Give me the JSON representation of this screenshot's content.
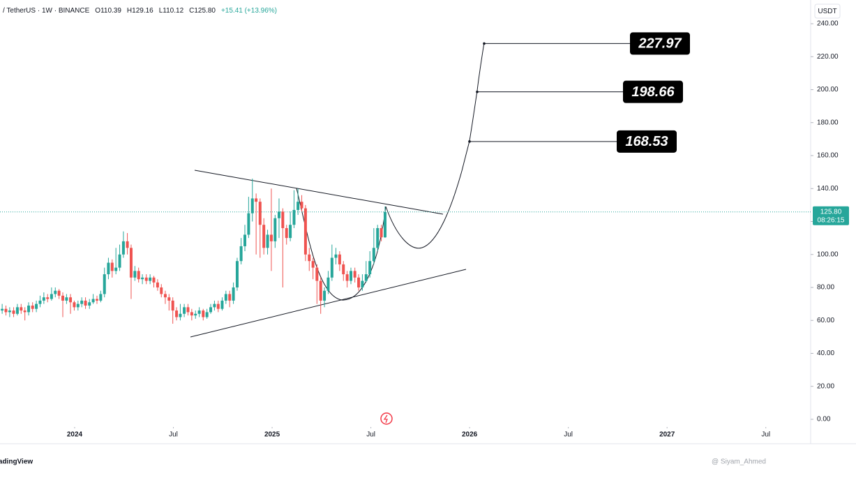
{
  "chart_data": {
    "type": "candlestick",
    "symbol": "/ TetherUS · 1W · BINANCE",
    "ohlc_header": [
      "O110.39",
      "H129.16",
      "L110.12",
      "C125.80",
      "+15.41 (+13.96%)"
    ],
    "currency": "USDT",
    "last_price": {
      "value": 125.8,
      "label": "125.80"
    },
    "countdown": "08:26:15",
    "up_color": "#26a69a",
    "down_color": "#ef5350",
    "targets": [
      227.97,
      198.66,
      168.53
    ],
    "xlim": [
      2023.622,
      2027.72
    ],
    "ylim": [
      0,
      240
    ],
    "xticks": [
      2024,
      {
        "value": 2024.5,
        "label": "Jul"
      },
      2025,
      {
        "value": 2025.5,
        "label": "Jul"
      },
      2026,
      {
        "value": 2026.5,
        "label": "Jul"
      },
      2027,
      {
        "value": 2027.5,
        "label": "Jul"
      }
    ],
    "yticks": [
      {
        "value": 0,
        "label": "0.00"
      },
      {
        "value": 20,
        "label": "20.00"
      },
      {
        "value": 40,
        "label": "40.00"
      },
      {
        "value": 60,
        "label": "60.00"
      },
      {
        "value": 80,
        "label": "80.00"
      },
      {
        "value": 100,
        "label": "100.00"
      },
      {
        "value": 120,
        "label": "120.00"
      },
      {
        "value": 140,
        "label": "140.00"
      },
      {
        "value": 160,
        "label": "160.00"
      },
      {
        "value": 180,
        "label": "180.00"
      },
      {
        "value": 200,
        "label": "200.00"
      },
      {
        "value": 220,
        "label": "220.00"
      },
      {
        "value": 240,
        "label": "240.00"
      }
    ],
    "x": [
      2023.633,
      2023.652,
      2023.671,
      2023.691,
      2023.71,
      2023.729,
      2023.748,
      2023.767,
      2023.787,
      2023.806,
      2023.825,
      2023.844,
      2023.863,
      2023.883,
      2023.902,
      2023.921,
      2023.94,
      2023.959,
      2023.979,
      2023.998,
      2024.017,
      2024.036,
      2024.055,
      2024.075,
      2024.094,
      2024.113,
      2024.132,
      2024.151,
      2024.171,
      2024.19,
      2024.209,
      2024.228,
      2024.247,
      2024.267,
      2024.286,
      2024.305,
      2024.324,
      2024.343,
      2024.363,
      2024.382,
      2024.401,
      2024.42,
      2024.439,
      2024.459,
      2024.478,
      2024.497,
      2024.516,
      2024.535,
      2024.555,
      2024.574,
      2024.593,
      2024.612,
      2024.631,
      2024.651,
      2024.67,
      2024.689,
      2024.708,
      2024.727,
      2024.747,
      2024.766,
      2024.785,
      2024.804,
      2024.823,
      2024.843,
      2024.862,
      2024.881,
      2024.9,
      2024.919,
      2024.939,
      2024.958,
      2024.977,
      2024.996,
      2025.015,
      2025.035,
      2025.054,
      2025.073,
      2025.092,
      2025.111,
      2025.131,
      2025.15,
      2025.169,
      2025.188,
      2025.207,
      2025.227,
      2025.246,
      2025.265,
      2025.284,
      2025.303,
      2025.323,
      2025.342,
      2025.361,
      2025.38,
      2025.399,
      2025.419,
      2025.438,
      2025.457,
      2025.476,
      2025.495,
      2025.515,
      2025.534,
      2025.553,
      2025.572
    ],
    "open": [
      66,
      67,
      65,
      66,
      64,
      68,
      66,
      65,
      69,
      67,
      70,
      72,
      74,
      73,
      76,
      78,
      75,
      72,
      74,
      71,
      68,
      70,
      72,
      69,
      71,
      73,
      72,
      76,
      88,
      95,
      90,
      92,
      100,
      108,
      104,
      86,
      90,
      85,
      86,
      84,
      86,
      83,
      80,
      76,
      74,
      72,
      66,
      62,
      64,
      68,
      65,
      63,
      64,
      66,
      62,
      65,
      68,
      70,
      67,
      72,
      76,
      72,
      80,
      96,
      105,
      112,
      125,
      134,
      132,
      118,
      104,
      112,
      108,
      122,
      126,
      116,
      110,
      118,
      127,
      132,
      128,
      100,
      96,
      92,
      84,
      72,
      78,
      86,
      98,
      100,
      94,
      88,
      84,
      90,
      86,
      80,
      84,
      88,
      96,
      104,
      116,
      110.39
    ],
    "high": [
      70,
      69,
      68,
      68,
      70,
      70,
      68,
      71,
      71,
      72,
      75,
      77,
      76,
      80,
      80,
      79,
      77,
      76,
      76,
      72,
      72,
      74,
      74,
      73,
      76,
      75,
      78,
      92,
      98,
      97,
      104,
      106,
      114,
      113,
      106,
      93,
      92,
      88,
      88,
      88,
      87,
      85,
      82,
      78,
      76,
      74,
      68,
      70,
      70,
      70,
      67,
      66,
      68,
      67,
      67,
      70,
      72,
      72,
      74,
      78,
      78,
      83,
      98,
      110,
      118,
      135,
      146,
      137,
      134,
      122,
      115,
      140,
      124,
      134,
      128,
      118,
      126,
      139,
      140,
      136,
      130,
      104,
      98,
      94,
      86,
      80,
      90,
      106,
      104,
      102,
      96,
      90,
      92,
      92,
      88,
      88,
      96,
      102,
      116,
      118,
      118,
      129.16
    ],
    "low": [
      64,
      63,
      62,
      62,
      63,
      64,
      60,
      63,
      65,
      65,
      68,
      70,
      71,
      72,
      74,
      73,
      62,
      70,
      64,
      66,
      66,
      68,
      67,
      67,
      70,
      70,
      71,
      74,
      85,
      86,
      88,
      90,
      98,
      100,
      73,
      84,
      83,
      82,
      82,
      82,
      80,
      78,
      74,
      70,
      66,
      58,
      60,
      60,
      62,
      63,
      60,
      61,
      62,
      60,
      61,
      64,
      66,
      65,
      66,
      70,
      68,
      70,
      78,
      94,
      102,
      110,
      120,
      100,
      98,
      100,
      100,
      90,
      104,
      110,
      80,
      106,
      108,
      116,
      124,
      126,
      96,
      90,
      85,
      70,
      64,
      68,
      76,
      84,
      94,
      90,
      84,
      80,
      82,
      83,
      78,
      78,
      83,
      86,
      94,
      102,
      108,
      110.12
    ],
    "close": [
      67,
      65,
      66,
      64,
      68,
      66,
      65,
      69,
      67,
      70,
      72,
      74,
      73,
      76,
      78,
      75,
      72,
      74,
      71,
      68,
      70,
      72,
      69,
      71,
      73,
      72,
      76,
      88,
      95,
      90,
      92,
      100,
      108,
      104,
      86,
      90,
      85,
      86,
      84,
      86,
      83,
      80,
      76,
      74,
      72,
      66,
      62,
      64,
      68,
      65,
      63,
      64,
      66,
      62,
      65,
      68,
      70,
      67,
      72,
      76,
      72,
      80,
      96,
      105,
      112,
      125,
      134,
      132,
      118,
      104,
      112,
      108,
      122,
      126,
      116,
      110,
      118,
      127,
      132,
      128,
      100,
      96,
      92,
      84,
      72,
      78,
      86,
      98,
      100,
      94,
      88,
      84,
      90,
      86,
      80,
      84,
      88,
      96,
      104,
      116,
      110.39,
      125.8
    ]
  },
  "footer": {
    "logo": "radingView",
    "watermark": "@ Siyam_Ahmed"
  }
}
